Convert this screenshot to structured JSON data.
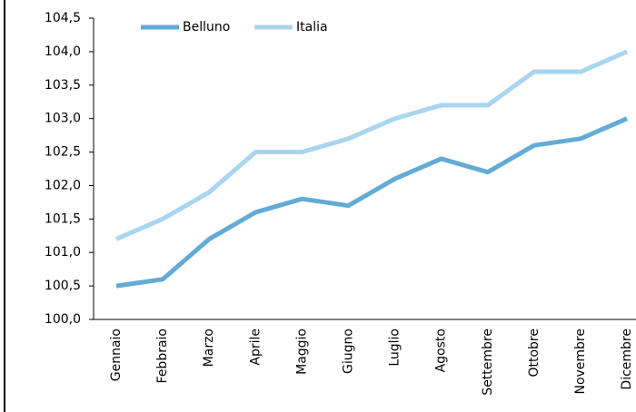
{
  "chart_data": {
    "type": "line",
    "categories": [
      "Gennaio",
      "Febbraio",
      "Marzo",
      "Aprile",
      "Maggio",
      "Giugno",
      "Luglio",
      "Agosto",
      "Settembre",
      "Ottobre",
      "Novembre",
      "Dicembre"
    ],
    "series": [
      {
        "name": "Belluno",
        "color": "#62acd4",
        "values": [
          100.5,
          100.6,
          101.2,
          101.6,
          101.8,
          101.7,
          102.1,
          102.4,
          102.2,
          102.6,
          102.7,
          103.0
        ]
      },
      {
        "name": "Italia",
        "color": "#a9d5ef",
        "values": [
          101.2,
          101.5,
          101.9,
          102.5,
          102.5,
          102.7,
          103.0,
          103.2,
          103.2,
          103.7,
          103.7,
          104.0
        ]
      }
    ],
    "ylim": [
      100.0,
      104.5
    ],
    "yticks": [
      {
        "value": 100.0,
        "label": "100,0"
      },
      {
        "value": 100.5,
        "label": "100,5"
      },
      {
        "value": 101.0,
        "label": "101,0"
      },
      {
        "value": 101.5,
        "label": "101,5"
      },
      {
        "value": 102.0,
        "label": "102,0"
      },
      {
        "value": 102.5,
        "label": "102,5"
      },
      {
        "value": 103.0,
        "label": "103,0"
      },
      {
        "value": 103.5,
        "label": "103,5"
      },
      {
        "value": 104.0,
        "label": "104,0"
      },
      {
        "value": 104.5,
        "label": "104,5"
      }
    ],
    "grid": false,
    "legend": "top"
  }
}
